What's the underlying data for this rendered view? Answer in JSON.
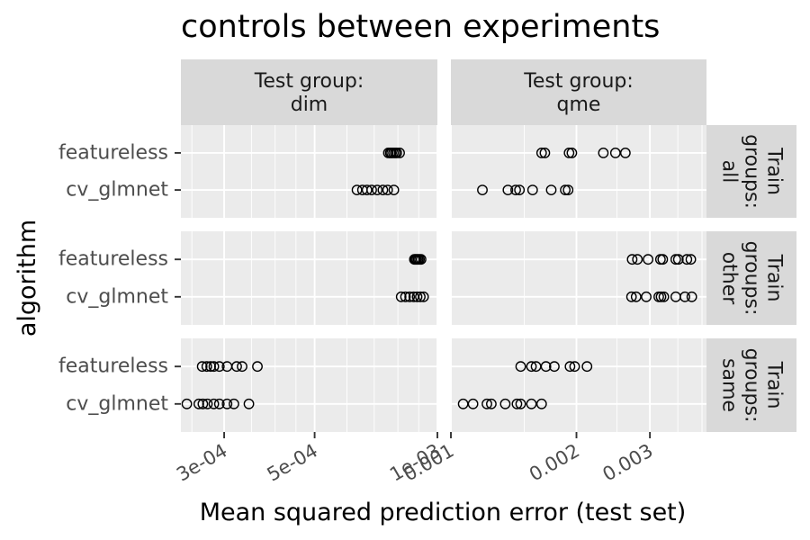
{
  "chart_data": {
    "type": "scatter",
    "title": "controls between experiments",
    "xlabel": "Mean squared prediction error (test set)",
    "ylabel": "algorithm",
    "x_scale": "log",
    "categories": [
      "featureless",
      "cv_glmnet"
    ],
    "facet_rows": [
      "Train groups: all",
      "Train groups: other",
      "Train groups: same"
    ],
    "facet_cols": [
      {
        "strip": [
          "Test group:",
          "dim"
        ],
        "xlim": [
          0.000235,
          0.001
        ],
        "ticks": [
          0.0003,
          0.0005,
          0.001
        ],
        "tick_labels": [
          "3e-04",
          "5e-04",
          "1e-03"
        ],
        "minor_ticks": [
          0.00025,
          0.00035,
          0.0004,
          0.00045,
          0.0006,
          0.0007,
          0.0008,
          0.0009
        ]
      },
      {
        "strip": [
          "Test group:",
          "qme"
        ],
        "xlim": [
          0.001,
          0.0041
        ],
        "ticks": [
          0.001,
          0.002,
          0.003
        ],
        "tick_labels": [
          "0.001",
          "0.002",
          "0.003"
        ],
        "minor_ticks": [
          0.0015,
          0.0025,
          0.0035,
          0.004
        ]
      }
    ],
    "points": [
      {
        "row": 0,
        "col": 0,
        "algorithm": "featureless",
        "x": [
          0.000758,
          0.000766,
          0.000772,
          0.00078,
          0.000788,
          0.000795,
          0.000808
        ]
      },
      {
        "row": 0,
        "col": 0,
        "algorithm": "cv_glmnet",
        "x": [
          0.000635,
          0.000655,
          0.000672,
          0.00069,
          0.000712,
          0.000735,
          0.000755,
          0.000782
        ]
      },
      {
        "row": 0,
        "col": 1,
        "algorithm": "featureless",
        "x": [
          0.00165,
          0.00168,
          0.00192,
          0.00195,
          0.00232,
          0.00248,
          0.00262
        ]
      },
      {
        "row": 0,
        "col": 1,
        "algorithm": "cv_glmnet",
        "x": [
          0.00119,
          0.00137,
          0.00143,
          0.00146,
          0.00157,
          0.00174,
          0.00188,
          0.00191
        ]
      },
      {
        "row": 1,
        "col": 0,
        "algorithm": "featureless",
        "x": [
          0.000878,
          0.000884,
          0.00089,
          0.000897,
          0.000904,
          0.000912
        ]
      },
      {
        "row": 1,
        "col": 0,
        "algorithm": "cv_glmnet",
        "x": [
          0.000815,
          0.000835,
          0.000855,
          0.000875,
          0.000892,
          0.000908,
          0.000925
        ]
      },
      {
        "row": 1,
        "col": 1,
        "algorithm": "featureless",
        "x": [
          0.00272,
          0.0028,
          0.00297,
          0.00318,
          0.00322,
          0.00346,
          0.00351,
          0.00368,
          0.00376
        ]
      },
      {
        "row": 1,
        "col": 1,
        "algorithm": "cv_glmnet",
        "x": [
          0.00271,
          0.00278,
          0.00294,
          0.00315,
          0.00319,
          0.00324,
          0.00346,
          0.00364,
          0.00378
        ]
      },
      {
        "row": 2,
        "col": 0,
        "algorithm": "featureless",
        "x": [
          0.000265,
          0.000272,
          0.000278,
          0.000283,
          0.000292,
          0.000305,
          0.000322,
          0.000332,
          0.000362
        ]
      },
      {
        "row": 2,
        "col": 0,
        "algorithm": "cv_glmnet",
        "x": [
          0.000243,
          0.00026,
          0.000266,
          0.000273,
          0.000283,
          0.000292,
          0.000305,
          0.000317,
          0.000345
        ]
      },
      {
        "row": 2,
        "col": 1,
        "algorithm": "featureless",
        "x": [
          0.00147,
          0.00156,
          0.0016,
          0.00169,
          0.00177,
          0.00193,
          0.00198,
          0.00212
        ]
      },
      {
        "row": 2,
        "col": 1,
        "algorithm": "cv_glmnet",
        "x": [
          0.00107,
          0.00113,
          0.00122,
          0.00125,
          0.00135,
          0.00144,
          0.00147,
          0.00156,
          0.00165
        ]
      }
    ]
  }
}
